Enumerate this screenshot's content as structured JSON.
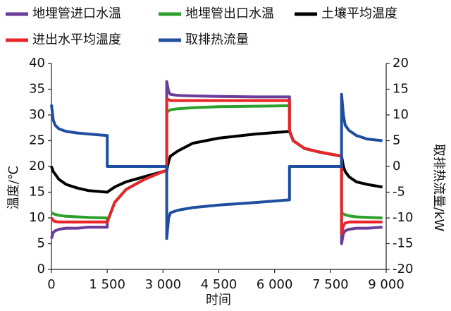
{
  "chart_data": {
    "type": "line",
    "xlabel": "时间",
    "ylabel": "温度/℃",
    "y2label": "取排热流量/kW",
    "x": [
      0,
      50,
      100,
      200,
      400,
      700,
      1000,
      1500,
      1500,
      1700,
      2000,
      2500,
      3000,
      3100,
      3100,
      3150,
      3200,
      3400,
      3800,
      4500,
      5500,
      6400,
      6400,
      6500,
      6800,
      7200,
      7800,
      7800,
      7850,
      7900,
      8000,
      8200,
      8500,
      8900
    ],
    "xlim": [
      0,
      9000
    ],
    "xticks": [
      0,
      {
        "value": 1500,
        "label": "1 500"
      },
      {
        "value": 3000,
        "label": "3 000"
      },
      {
        "value": 4500,
        "label": "4 500"
      },
      {
        "value": 6000,
        "label": "6 000"
      },
      {
        "value": 7500,
        "label": "7 500"
      },
      {
        "value": 9000,
        "label": "9 000"
      }
    ],
    "ylim": [
      0,
      40
    ],
    "yticks": [
      0,
      5,
      10,
      15,
      20,
      25,
      30,
      35,
      40
    ],
    "y2lim": [
      -20,
      20
    ],
    "y2ticks": [
      -20,
      -15,
      -10,
      -5,
      0,
      5,
      10,
      15,
      20
    ],
    "series": [
      {
        "name": "地埋管进口水温",
        "color": "#6a3d9a",
        "values": [
          6,
          7.2,
          7.5,
          7.8,
          8,
          8,
          8.2,
          8.2,
          9.2,
          13,
          15.5,
          17.5,
          19,
          19.2,
          36.5,
          34.5,
          34,
          33.8,
          33.7,
          33.6,
          33.5,
          33.5,
          27,
          25,
          23.5,
          22.8,
          22,
          5,
          7,
          7.5,
          7.8,
          8,
          8,
          8.2
        ]
      },
      {
        "name": "地埋管出口水温",
        "color": "#2ca02c",
        "values": [
          11,
          10.8,
          10.7,
          10.5,
          10.3,
          10.2,
          10.1,
          10,
          9.2,
          13,
          15.5,
          17.5,
          19,
          19.2,
          30.5,
          30.8,
          31,
          31.2,
          31.4,
          31.6,
          31.7,
          31.8,
          27,
          25,
          23.5,
          22.8,
          22,
          11,
          10.8,
          10.6,
          10.4,
          10.2,
          10.1,
          10
        ]
      },
      {
        "name": "土壤平均温度",
        "color": "#000000",
        "values": [
          20,
          19,
          18.5,
          17.5,
          16.5,
          15.8,
          15.3,
          15,
          15,
          16,
          17,
          18,
          19,
          19.2,
          19.2,
          21,
          22,
          23,
          24.5,
          25.5,
          26.3,
          26.8,
          26.8,
          25,
          23.5,
          22.8,
          22,
          22,
          20,
          19,
          18,
          17,
          16.5,
          16
        ]
      },
      {
        "name": "进出水平均温度",
        "color": "#e8262a",
        "values": [
          10,
          9.5,
          9.3,
          9.2,
          9.2,
          9.2,
          9.2,
          9.2,
          9.2,
          13,
          15.5,
          17.5,
          19,
          19.2,
          33,
          33,
          32.8,
          32.8,
          32.8,
          32.8,
          32.8,
          32.8,
          27,
          25,
          23.5,
          22.8,
          22,
          7,
          8.5,
          9,
          9.2,
          9.2,
          9.2,
          9.2
        ]
      },
      {
        "name": "取排热流量",
        "color": "#1f4e9f",
        "axis": "y2",
        "values": [
          12,
          9,
          8,
          7.3,
          6.8,
          6.5,
          6.3,
          6,
          0,
          0,
          0,
          0,
          0,
          0,
          -14,
          -10,
          -9,
          -8.5,
          -8,
          -7.5,
          -7,
          -6.5,
          0,
          0,
          0,
          0,
          0,
          14,
          10,
          8,
          7,
          6,
          5.3,
          5
        ]
      }
    ]
  }
}
